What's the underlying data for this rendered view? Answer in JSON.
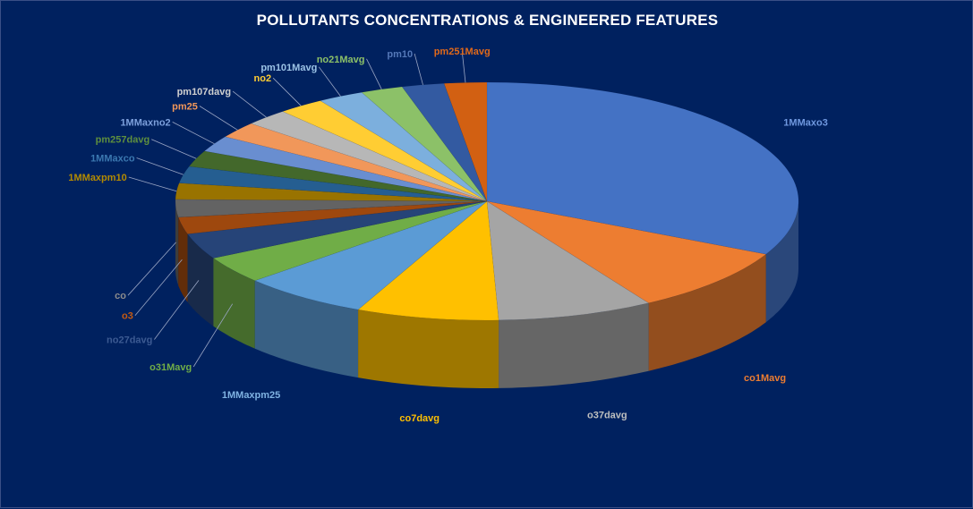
{
  "chart_data": {
    "type": "pie",
    "title": "POLLUTANTS CONCENTRATIONS & ENGINEERED FEATURES",
    "style": "3d-exploded",
    "slices": [
      {
        "label": "1MMaxo3",
        "value": 32.4,
        "color": "#4472C4",
        "label_color": "#6f98df"
      },
      {
        "label": "co1Mavg",
        "value": 9.0,
        "color": "#ED7D31",
        "label_color": "#ED7D31"
      },
      {
        "label": "o37davg",
        "value": 8.1,
        "color": "#A5A5A5",
        "label_color": "#bfbfbf"
      },
      {
        "label": "co7davg",
        "value": 7.4,
        "color": "#FFC000",
        "label_color": "#FFC000"
      },
      {
        "label": "1MMaxpm25",
        "value": 6.6,
        "color": "#5B9BD5",
        "label_color": "#7fb2e2"
      },
      {
        "label": "o31Mavg",
        "value": 3.7,
        "color": "#70AD47",
        "label_color": "#70AD47"
      },
      {
        "label": "no27davg",
        "value": 3.5,
        "color": "#264478",
        "label_color": "#3c5a92"
      },
      {
        "label": "o3",
        "value": 2.3,
        "color": "#9E480E",
        "label_color": "#c55a11"
      },
      {
        "label": "co",
        "value": 2.4,
        "color": "#636363",
        "label_color": "#8c8c8c"
      },
      {
        "label": "1MMaxpm10",
        "value": 2.2,
        "color": "#997300",
        "label_color": "#b38a00"
      },
      {
        "label": "1MMaxco",
        "value": 2.3,
        "color": "#255E91",
        "label_color": "#3b78b0"
      },
      {
        "label": "pm257davg",
        "value": 2.2,
        "color": "#43682B",
        "label_color": "#5e8f3e"
      },
      {
        "label": "1MMaxno2",
        "value": 2.2,
        "color": "#698ED0",
        "label_color": "#7da0dc"
      },
      {
        "label": "pm25",
        "value": 2.2,
        "color": "#F1975A",
        "label_color": "#F1975A"
      },
      {
        "label": "pm107davg",
        "value": 2.3,
        "color": "#B7B7B7",
        "label_color": "#d0d0d0"
      },
      {
        "label": "no2",
        "value": 2.4,
        "color": "#FFCD33",
        "label_color": "#FFCD33"
      },
      {
        "label": "pm101Mavg",
        "value": 2.4,
        "color": "#7CAFDD",
        "label_color": "#9cc3e6"
      },
      {
        "label": "no21Mavg",
        "value": 2.2,
        "color": "#8CC168",
        "label_color": "#8CC168"
      },
      {
        "label": "pm10",
        "value": 2.2,
        "color": "#335AA1",
        "label_color": "#5478b8"
      },
      {
        "label": "pm251Mavg",
        "value": 2.2,
        "color": "#D26012",
        "label_color": "#e0691a"
      }
    ]
  }
}
